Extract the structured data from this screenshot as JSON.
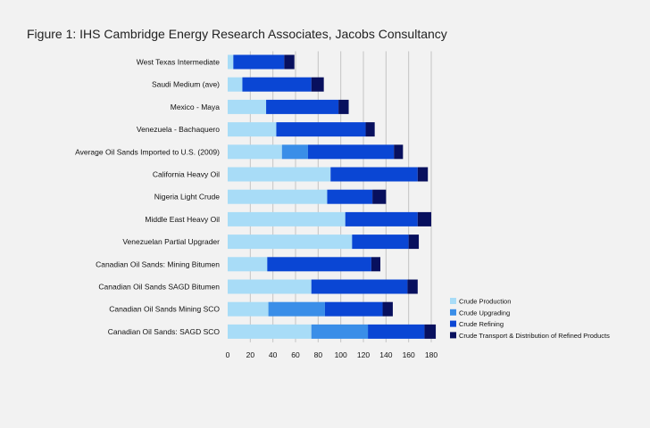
{
  "chart_data": {
    "type": "bar",
    "orientation": "horizontal",
    "stacked": true,
    "title": "Figure 1: IHS Cambridge Energy Research Associates, Jacobs Consultancy",
    "categories": [
      "West Texas Intermediate",
      "Saudi Medium (ave)",
      "Mexico - Maya",
      "Venezuela - Bachaquero",
      "Average Oil Sands Imported to U.S. (2009)",
      "California Heavy Oil",
      "Nigeria Light Crude",
      "Middle East Heavy Oil",
      "Venezuelan Partial Upgrader",
      "Canadian Oil Sands: Mining Bitumen",
      "Canadian Oil Sands SAGD Bitumen",
      "Canadian Oil Sands Mining SCO",
      "Canadian Oil Sands: SAGD SCO"
    ],
    "series": [
      {
        "name": "Crude Production",
        "color": "#a8dcf7",
        "values": [
          5,
          13,
          34,
          43,
          48,
          91,
          88,
          104,
          110,
          35,
          74,
          36,
          74
        ]
      },
      {
        "name": "Crude Upgrading",
        "color": "#3a8ee8",
        "values": [
          0,
          0,
          0,
          0,
          23,
          0,
          0,
          0,
          0,
          0,
          0,
          50,
          50
        ]
      },
      {
        "name": "Crude Refining",
        "color": "#0a46d4",
        "values": [
          45,
          61,
          64,
          79,
          76,
          77,
          40,
          64,
          50,
          92,
          85,
          51,
          50
        ]
      },
      {
        "name": "Crude Transport & Distribution of Refined Products",
        "color": "#08105e",
        "values": [
          9,
          11,
          9,
          8,
          8,
          9,
          12,
          12,
          9,
          8,
          9,
          9,
          10
        ]
      }
    ],
    "xlim": [
      0,
      180
    ],
    "xticks": [
      0,
      20,
      40,
      60,
      80,
      100,
      120,
      140,
      160,
      180
    ],
    "grid": "vertical",
    "legend": "bottom-right",
    "xlabel": "",
    "ylabel": ""
  }
}
